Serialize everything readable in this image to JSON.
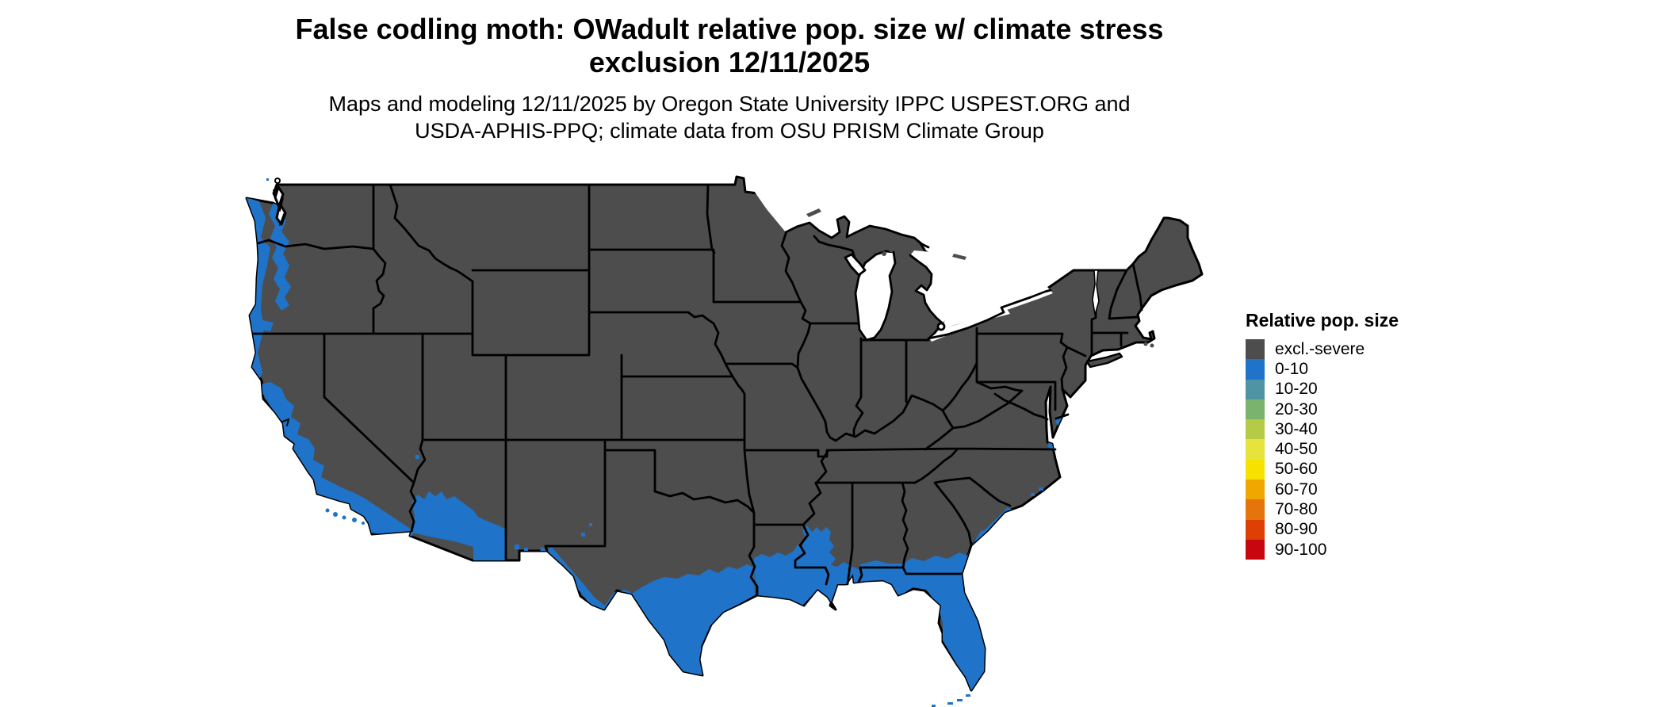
{
  "header": {
    "title_line1": "False codling moth: OWadult relative pop. size w/ climate stress",
    "title_line2": "exclusion 12/11/2025",
    "subtitle_line1": "Maps and modeling 12/11/2025 by Oregon State University IPPC USPEST.ORG and",
    "subtitle_line2": "USDA-APHIS-PPQ; climate data from OSU PRISM Climate Group"
  },
  "legend": {
    "title": "Relative pop. size",
    "items": [
      {
        "label": "excl.-severe",
        "color": "#4d4d4d"
      },
      {
        "label": "0-10",
        "color": "#1f73c8"
      },
      {
        "label": "10-20",
        "color": "#4e94a4"
      },
      {
        "label": "20-30",
        "color": "#7ab36e"
      },
      {
        "label": "30-40",
        "color": "#b5ca45"
      },
      {
        "label": "40-50",
        "color": "#e6e33d"
      },
      {
        "label": "50-60",
        "color": "#f7e100"
      },
      {
        "label": "60-70",
        "color": "#f0a800"
      },
      {
        "label": "70-80",
        "color": "#e5740a"
      },
      {
        "label": "80-90",
        "color": "#de3f05"
      },
      {
        "label": "90-100",
        "color": "#c8060f"
      }
    ]
  },
  "map": {
    "type": "us-choropleth-raster",
    "land_color": "#4d4d4d",
    "border_color": "#000000",
    "water_color": "#ffffff",
    "pop_0_10_color": "#1f73c8",
    "visible_categories": [
      "excl.-severe",
      "0-10"
    ]
  }
}
